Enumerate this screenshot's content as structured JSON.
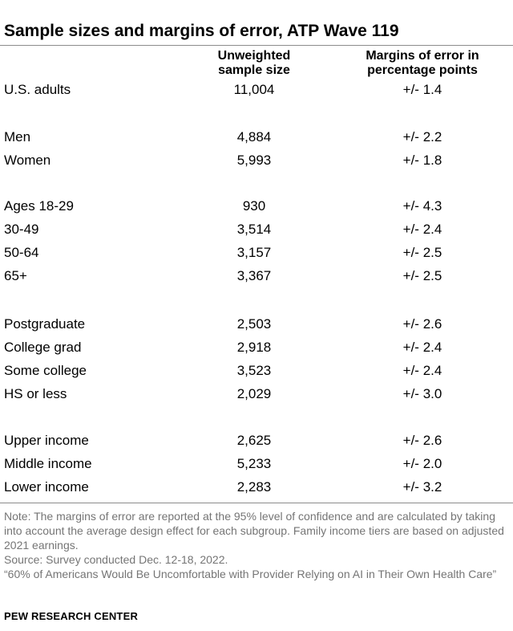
{
  "title": "Sample sizes and margins of error, ATP Wave 119",
  "columns": {
    "sample_size": [
      "Unweighted",
      "sample size"
    ],
    "margin": [
      "Margins of error in",
      "percentage points"
    ]
  },
  "rows": [
    {
      "label": "U.S. adults",
      "size": "11,004",
      "moe": "+/- 1.4"
    },
    {
      "label": "Men",
      "size": "4,884",
      "moe": "+/- 2.2"
    },
    {
      "label": "Women",
      "size": "5,993",
      "moe": "+/- 1.8"
    },
    {
      "label": "Ages 18-29",
      "size": "930",
      "moe": "+/- 4.3"
    },
    {
      "label": "30-49",
      "size": "3,514",
      "moe": "+/- 2.4"
    },
    {
      "label": "50-64",
      "size": "3,157",
      "moe": "+/- 2.5"
    },
    {
      "label": "65+",
      "size": "3,367",
      "moe": "+/- 2.5"
    },
    {
      "label": "Postgraduate",
      "size": "2,503",
      "moe": "+/- 2.6"
    },
    {
      "label": "College grad",
      "size": "2,918",
      "moe": "+/- 2.4"
    },
    {
      "label": "Some college",
      "size": "3,523",
      "moe": "+/- 2.4"
    },
    {
      "label": "HS or less",
      "size": "2,029",
      "moe": "+/- 3.0"
    },
    {
      "label": "Upper income",
      "size": "2,625",
      "moe": "+/- 2.6"
    },
    {
      "label": "Middle income",
      "size": "5,233",
      "moe": "+/- 2.0"
    },
    {
      "label": "Lower income",
      "size": "2,283",
      "moe": "+/- 3.2"
    }
  ],
  "notes": {
    "note": "Note: The margins of error are reported at the 95% level of confidence and are calculated by taking into account the average design effect for each subgroup. Family income tiers are based on adjusted 2021 earnings.",
    "source": "Source: Survey conducted Dec. 12-18, 2022.",
    "report": "“60% of Americans Would Be Uncomfortable with Provider Relying on AI in Their Own Health Care”"
  },
  "brand": "PEW RESEARCH CENTER"
}
